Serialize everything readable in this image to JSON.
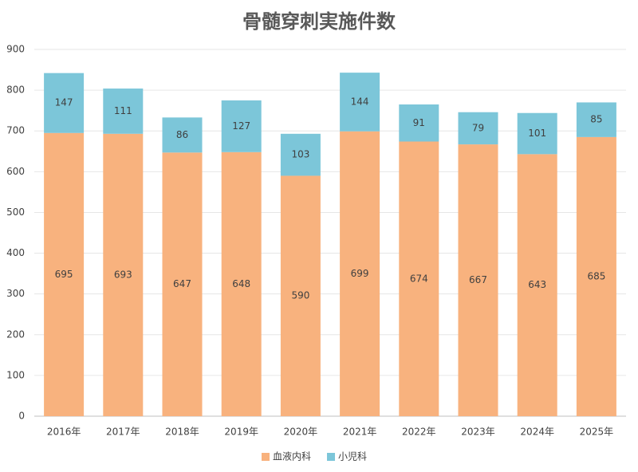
{
  "chart_data": {
    "type": "stacked_bar",
    "title": "骨髄穿刺実施件数",
    "categories": [
      "2016年",
      "2017年",
      "2018年",
      "2019年",
      "2020年",
      "2021年",
      "2022年",
      "2023年",
      "2024年",
      "2025年"
    ],
    "series": [
      {
        "name": "血液内科",
        "color": "#f8b27e",
        "values": [
          695,
          693,
          647,
          648,
          590,
          699,
          674,
          667,
          643,
          685
        ]
      },
      {
        "name": "小児科",
        "color": "#7cc6d9",
        "values": [
          147,
          111,
          86,
          127,
          103,
          144,
          91,
          79,
          101,
          85
        ]
      }
    ],
    "ylim": [
      0,
      900
    ],
    "yticks": [
      0,
      100,
      200,
      300,
      400,
      500,
      600,
      700,
      800,
      900
    ],
    "grid": true,
    "legend": "bottom"
  }
}
